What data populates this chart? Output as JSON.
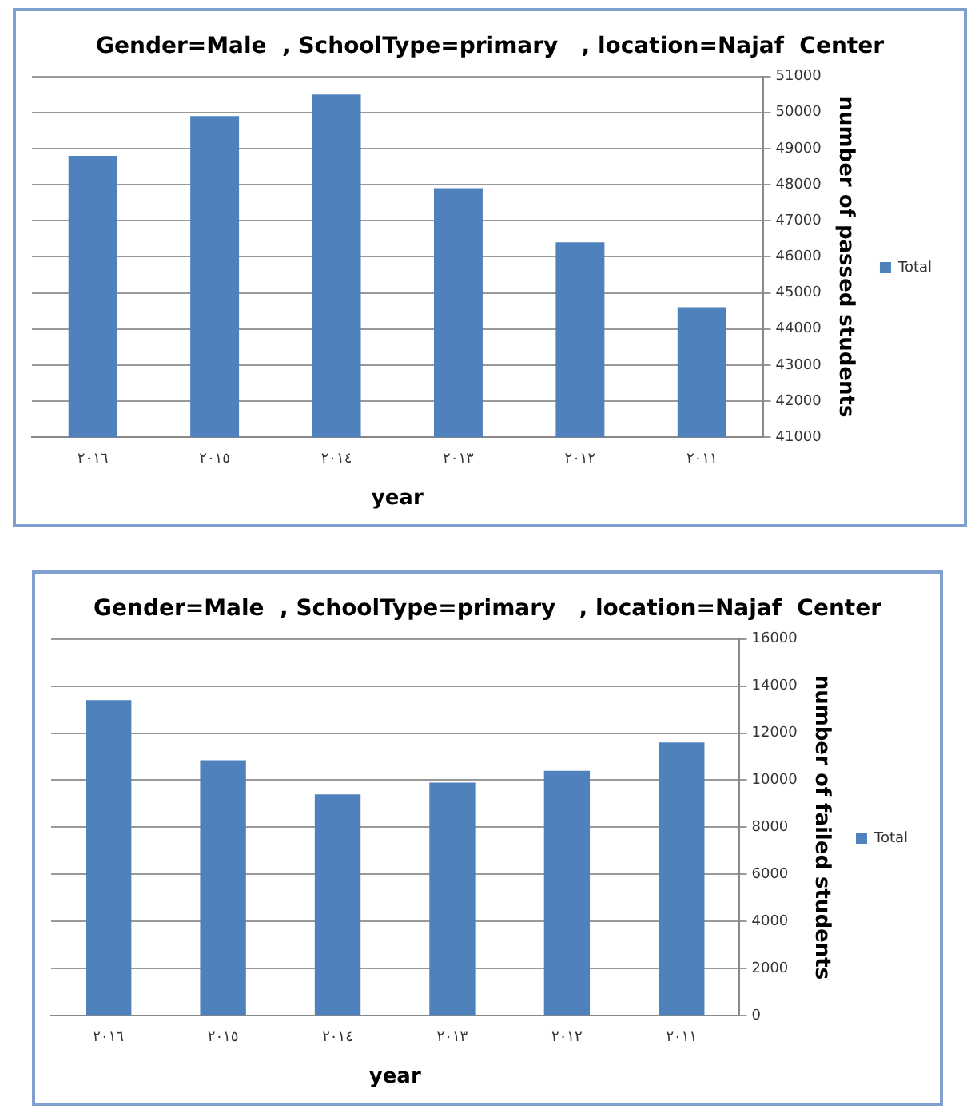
{
  "chart_data": [
    {
      "type": "bar",
      "title": "Gender=Male  , SchoolType=primary   , location=Najaf  Center",
      "xlabel": "year",
      "ylabel": "number of passed students",
      "categories": [
        "٢٠١٦",
        "٢٠١٥",
        "٢٠١٤",
        "٢٠١٣",
        "٢٠١٢",
        "٢٠١١"
      ],
      "series": [
        {
          "name": "Total",
          "color": "#4f81bd",
          "values": [
            48800,
            49900,
            50500,
            47900,
            46400,
            44600
          ]
        }
      ],
      "ylim": [
        41000,
        51000
      ],
      "yticks": [
        41000,
        42000,
        43000,
        44000,
        45000,
        46000,
        47000,
        48000,
        49000,
        50000,
        51000
      ],
      "grid": "y",
      "legend": "right"
    },
    {
      "type": "bar",
      "title": "Gender=Male  , SchoolType=primary   , location=Najaf  Center",
      "xlabel": "year",
      "ylabel": "number of failed students",
      "categories": [
        "٢٠١٦",
        "٢٠١٥",
        "٢٠١٤",
        "٢٠١٣",
        "٢٠١٢",
        "٢٠١١"
      ],
      "series": [
        {
          "name": "Total",
          "color": "#4f81bd",
          "values": [
            13400,
            10850,
            9400,
            9900,
            10400,
            11600
          ]
        }
      ],
      "ylim": [
        0,
        16000
      ],
      "yticks": [
        0,
        2000,
        4000,
        6000,
        8000,
        10000,
        12000,
        14000,
        16000
      ],
      "grid": "y",
      "legend": "right"
    }
  ]
}
